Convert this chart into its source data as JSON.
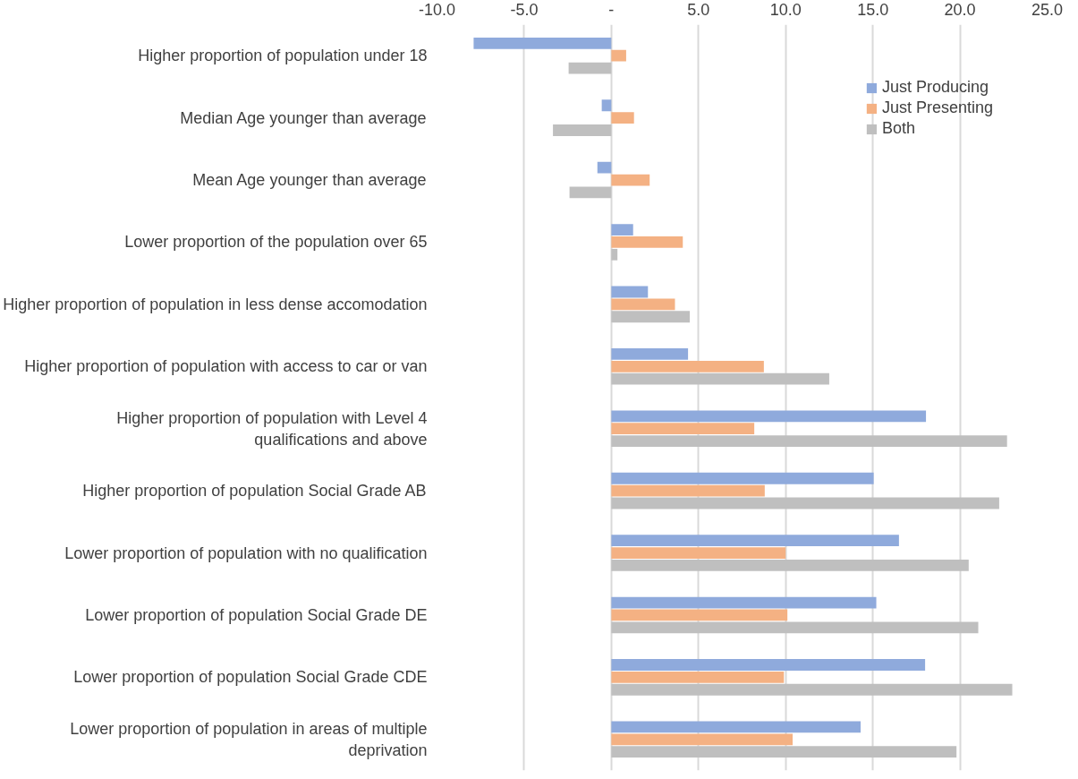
{
  "chart_data": {
    "type": "bar",
    "orientation": "horizontal",
    "categories": [
      "Higher proportion of population under 18",
      "Median Age younger than average",
      "Mean Age younger than average",
      "Lower proportion of the population over 65",
      "Higher proportion of population in less dense accomodation",
      "Higher proportion of population with access to car or van",
      "Higher proportion of population with Level 4 qualifications and above",
      "Higher proportion of population Social Grade AB",
      "Lower proportion of population with no qualification",
      "Lower proportion of population Social Grade DE",
      "Lower proportion of population Social Grade CDE",
      "Lower proportion of population in areas of multiple deprivation"
    ],
    "series": [
      {
        "name": "Just Producing",
        "color": "#8faadc",
        "values": [
          -7.9,
          -0.55,
          -0.8,
          1.25,
          2.1,
          4.4,
          18.05,
          15.05,
          16.5,
          15.2,
          18.0,
          14.3
        ]
      },
      {
        "name": "Just Presenting",
        "color": "#f4b183",
        "values": [
          0.85,
          1.3,
          2.2,
          4.1,
          3.65,
          8.75,
          8.2,
          8.8,
          10.0,
          10.1,
          9.9,
          10.4
        ]
      },
      {
        "name": "Both",
        "color": "#bfbfbf",
        "values": [
          -2.45,
          -3.35,
          -2.4,
          0.35,
          4.5,
          12.5,
          22.7,
          22.25,
          20.5,
          21.05,
          23.0,
          19.8
        ]
      }
    ],
    "xlim": [
      -10,
      25
    ],
    "xticks": [
      {
        "value": -10,
        "label": "-10.0"
      },
      {
        "value": -5,
        "label": "-5.0"
      },
      {
        "value": 0,
        "label": "-"
      },
      {
        "value": 5,
        "label": "5.0"
      },
      {
        "value": 10,
        "label": "10.0"
      },
      {
        "value": 15,
        "label": "15.0"
      },
      {
        "value": 20,
        "label": "20.0"
      },
      {
        "value": 25,
        "label": "25.0"
      }
    ],
    "grid": "x",
    "legend": "top right"
  }
}
